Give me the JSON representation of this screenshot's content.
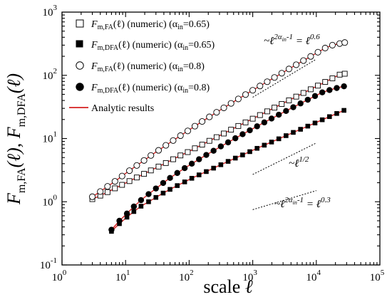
{
  "chart_data": {
    "type": "scatter",
    "xscale": "log",
    "yscale": "log",
    "xlim": [
      1,
      100000
    ],
    "ylim": [
      0.1,
      1000
    ],
    "xlabel": "scale ℓ",
    "ylabel": "F_{m,FA}(ℓ), F_{m,DFA}(ℓ)",
    "x_ticks": [
      {
        "value": 1,
        "base": "10",
        "exp": "0"
      },
      {
        "value": 10,
        "base": "10",
        "exp": "1"
      },
      {
        "value": 100,
        "base": "10",
        "exp": "2"
      },
      {
        "value": 1000,
        "base": "10",
        "exp": "3"
      },
      {
        "value": 10000,
        "base": "10",
        "exp": "4"
      },
      {
        "value": 100000,
        "base": "10",
        "exp": "5"
      }
    ],
    "y_ticks": [
      {
        "value": 0.1,
        "base": "10",
        "exp": "-1"
      },
      {
        "value": 1,
        "base": "10",
        "exp": "0"
      },
      {
        "value": 10,
        "base": "10",
        "exp": "1"
      },
      {
        "value": 100,
        "base": "10",
        "exp": "2"
      },
      {
        "value": 1000,
        "base": "10",
        "exp": "3"
      }
    ],
    "legend_position": "top-left",
    "series": [
      {
        "name": "F_{m,FA}(ℓ) (numeric) (α_in=0.65)",
        "legend_main": "F",
        "legend_sub": "m,FA",
        "legend_rest": "(ℓ) (numeric) (α",
        "legend_alpha_sub": "in",
        "legend_value": "=0.65)",
        "marker": "open-square",
        "x": [
          3,
          4,
          5.2,
          6.8,
          8.8,
          11.5,
          15,
          19.5,
          25,
          33,
          43,
          56,
          73,
          95,
          123,
          160,
          208,
          270,
          351,
          456,
          593,
          771,
          1000,
          1300,
          1690,
          2197,
          2856,
          3713,
          4827,
          6275,
          8157,
          10604,
          13785,
          17921,
          23297,
          28000
        ],
        "y": [
          1.1,
          1.25,
          1.42,
          1.63,
          1.85,
          2.12,
          2.42,
          2.76,
          3.13,
          3.6,
          4.1,
          4.7,
          5.4,
          6.1,
          7.0,
          8.0,
          9.2,
          10.5,
          12.0,
          13.8,
          15.8,
          18.0,
          20.6,
          23.5,
          26.9,
          30.8,
          35.2,
          40.2,
          46.0,
          52.6,
          60.1,
          68.7,
          78.5,
          89.7,
          102.5,
          106
        ]
      },
      {
        "name": "F_{m,DFA}(ℓ) (numeric) (α_in=0.65)",
        "legend_main": "F",
        "legend_sub": "m,DFA",
        "legend_rest": "(ℓ) (numeric) (α",
        "legend_alpha_sub": "in",
        "legend_value": "=0.65)",
        "marker": "filled-square",
        "x": [
          6,
          8,
          10.5,
          13.5,
          17.5,
          23,
          30,
          39,
          50,
          65,
          85,
          110,
          143,
          186,
          242,
          315,
          410,
          533,
          693,
          900,
          1170,
          1521,
          1977,
          2570,
          3341,
          4343,
          5646,
          7340,
          9542,
          12405,
          16126,
          20964,
          27253
        ],
        "y": [
          0.34,
          0.45,
          0.57,
          0.7,
          0.85,
          1.0,
          1.17,
          1.37,
          1.57,
          1.8,
          2.06,
          2.35,
          2.66,
          3.0,
          3.4,
          3.85,
          4.35,
          4.9,
          5.5,
          6.2,
          7.0,
          7.85,
          8.8,
          9.9,
          11.1,
          12.5,
          14.0,
          15.7,
          17.6,
          19.8,
          22.2,
          24.9,
          27.9
        ]
      },
      {
        "name": "F_{m,FA}(ℓ) (numeric) (α_in=0.8)",
        "legend_main": "F",
        "legend_sub": "m,FA",
        "legend_rest": "(ℓ) (numeric) (α",
        "legend_alpha_sub": "in",
        "legend_value": "=0.8)",
        "marker": "open-circle",
        "x": [
          3,
          4,
          5.2,
          6.8,
          8.8,
          11.5,
          15,
          19.5,
          25,
          33,
          43,
          56,
          73,
          95,
          123,
          160,
          208,
          270,
          351,
          456,
          593,
          771,
          1000,
          1300,
          1690,
          2197,
          2856,
          3713,
          4827,
          6275,
          8157,
          10604,
          13785,
          17921,
          23297,
          28000
        ],
        "y": [
          1.2,
          1.45,
          1.75,
          2.1,
          2.55,
          3.1,
          3.75,
          4.5,
          5.4,
          6.5,
          7.8,
          9.3,
          11.1,
          13.2,
          15.7,
          18.6,
          22.0,
          26.0,
          30.6,
          36.0,
          42.3,
          49.6,
          58.0,
          67.8,
          79.2,
          92.5,
          108,
          126,
          147,
          171,
          199,
          232,
          270,
          300,
          318,
          330
        ]
      },
      {
        "name": "F_{m,DFA}(ℓ) (numeric) (α_in=0.8)",
        "legend_main": "F",
        "legend_sub": "m,DFA",
        "legend_rest": "(ℓ) (numeric) (α",
        "legend_alpha_sub": "in",
        "legend_value": "=0.8)",
        "marker": "filled-circle",
        "x": [
          6,
          8,
          10.5,
          13.5,
          17.5,
          23,
          30,
          39,
          50,
          65,
          85,
          110,
          143,
          186,
          242,
          315,
          410,
          533,
          693,
          900,
          1170,
          1521,
          1977,
          2570,
          3341,
          4343,
          5646,
          7340,
          9542,
          12405,
          16126,
          20964,
          27253
        ],
        "y": [
          0.36,
          0.5,
          0.65,
          0.84,
          1.06,
          1.32,
          1.62,
          1.98,
          2.38,
          2.85,
          3.4,
          4.0,
          4.7,
          5.5,
          6.4,
          7.5,
          8.7,
          10.1,
          11.7,
          13.5,
          15.6,
          18.0,
          20.7,
          23.8,
          27.3,
          31.3,
          35.9,
          41.1,
          47.0,
          53.7,
          58.5,
          63.0,
          67.0
        ]
      }
    ],
    "analytic_name": "Analytic results",
    "analytic_color": "#d42020",
    "guide_lines": [
      {
        "from": [
          1000,
          45
        ],
        "to": [
          10000,
          180
        ]
      },
      {
        "from": [
          1000,
          2.7
        ],
        "to": [
          10000,
          8.5
        ]
      },
      {
        "from": [
          1000,
          0.75
        ],
        "to": [
          10000,
          1.5
        ]
      }
    ],
    "annotations": {
      "top_prefix": "~ℓ",
      "top_exp": "2α",
      "top_exp_sub": "in",
      "top_exp_tail": "-1",
      "top_eq": " = ℓ",
      "top_eq_exp": "0.6",
      "mid_prefix": "~ℓ",
      "mid_exp": "1/2",
      "bot_prefix": "~ℓ",
      "bot_exp": "2α",
      "bot_exp_sub": "in",
      "bot_exp_tail": "-1",
      "bot_eq": " = ℓ",
      "bot_eq_exp": "0.3"
    }
  }
}
